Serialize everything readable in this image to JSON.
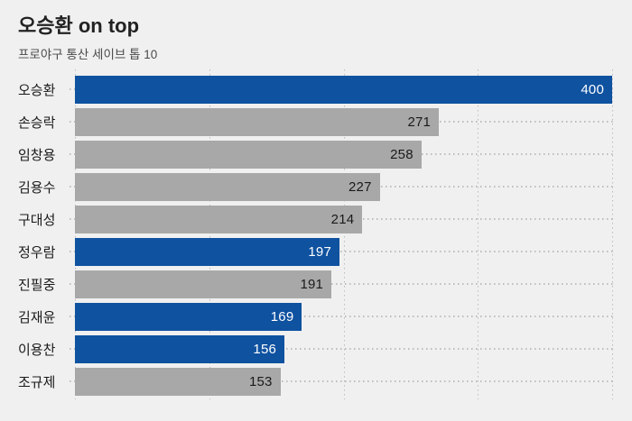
{
  "header": {
    "title": "오승환 on top",
    "subtitle": "프로야구 통산 세이브 톱 10"
  },
  "chart_data": {
    "type": "bar",
    "orientation": "horizontal",
    "title": "오승환 on top",
    "subtitle": "프로야구 통산 세이브 톱 10",
    "categories": [
      "오승환",
      "손승락",
      "임창용",
      "김용수",
      "구대성",
      "정우람",
      "진필중",
      "김재윤",
      "이용찬",
      "조규제"
    ],
    "values": [
      400,
      271,
      258,
      227,
      214,
      197,
      191,
      169,
      156,
      153
    ],
    "highlighted": [
      true,
      false,
      false,
      false,
      false,
      true,
      false,
      true,
      true,
      false
    ],
    "value_labels": [
      "400",
      "271",
      "258",
      "227",
      "214",
      "197",
      "191",
      "169",
      "156",
      "153"
    ],
    "xlim": [
      0,
      400
    ],
    "gridlines": [
      0,
      100,
      200,
      300,
      400
    ],
    "grid": "dotted",
    "legend": "none",
    "colors": {
      "highlight_bar": "#0f52a0",
      "default_bar": "#a8a8a8",
      "value_on_highlight": "#ffffff",
      "value_on_default": "#1a1a1a",
      "background": "#f0f0f0",
      "grid_dot": "#bdbdbd",
      "title_text": "#222222",
      "subtitle_text": "#4a4a4a"
    }
  }
}
